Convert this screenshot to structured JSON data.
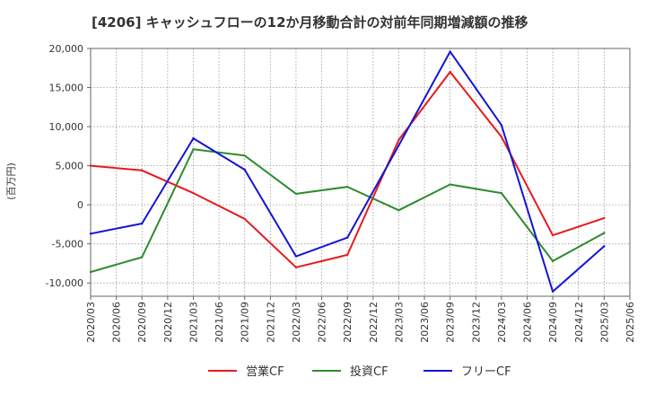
{
  "chart_data": {
    "type": "line",
    "title": "[4206]  キャッシュフローの12か月移動合計の対前年同期増減額の推移",
    "ylabel": "(百万円)",
    "xlabel": "",
    "ylim": [
      -11700,
      20000
    ],
    "yticks": [
      20000,
      15000,
      10000,
      5000,
      0,
      -5000,
      -10000
    ],
    "ytick_labels": [
      "20,000",
      "15,000",
      "10,000",
      "5,000",
      "0",
      "-5,000",
      "-10,000"
    ],
    "x_ticks": [
      "2020/03",
      "2020/06",
      "2020/09",
      "2020/12",
      "2021/03",
      "2021/06",
      "2021/09",
      "2021/12",
      "2022/03",
      "2022/06",
      "2022/09",
      "2022/12",
      "2023/03",
      "2023/06",
      "2023/09",
      "2023/12",
      "2024/03",
      "2024/06",
      "2024/09",
      "2024/12",
      "2025/03",
      "2025/06"
    ],
    "grid": true,
    "legend_position": "bottom",
    "series": [
      {
        "name": "営業CF",
        "color": "#e8191c",
        "x": [
          "2020/03",
          "2020/09",
          "2021/03",
          "2021/09",
          "2022/03",
          "2022/09",
          "2023/03",
          "2023/09",
          "2024/03",
          "2024/09",
          "2025/03"
        ],
        "values": [
          5000,
          4400,
          1500,
          -1800,
          -8000,
          -6400,
          8300,
          17000,
          8700,
          -3900,
          -1700
        ]
      },
      {
        "name": "投資CF",
        "color": "#2e8b2e",
        "x": [
          "2020/03",
          "2020/09",
          "2021/03",
          "2021/09",
          "2022/03",
          "2022/09",
          "2023/03",
          "2023/09",
          "2024/03",
          "2024/09",
          "2025/03"
        ],
        "values": [
          -8600,
          -6700,
          7100,
          6300,
          1400,
          2300,
          -700,
          2600,
          1500,
          -7200,
          -3600
        ]
      },
      {
        "name": "フリーCF",
        "color": "#1515d4",
        "x": [
          "2020/03",
          "2020/09",
          "2021/03",
          "2021/09",
          "2022/03",
          "2022/09",
          "2023/03",
          "2023/09",
          "2024/03",
          "2024/09",
          "2025/03"
        ],
        "values": [
          -3700,
          -2400,
          8500,
          4500,
          -6600,
          -4200,
          7600,
          19600,
          10200,
          -11100,
          -5300
        ]
      }
    ]
  }
}
